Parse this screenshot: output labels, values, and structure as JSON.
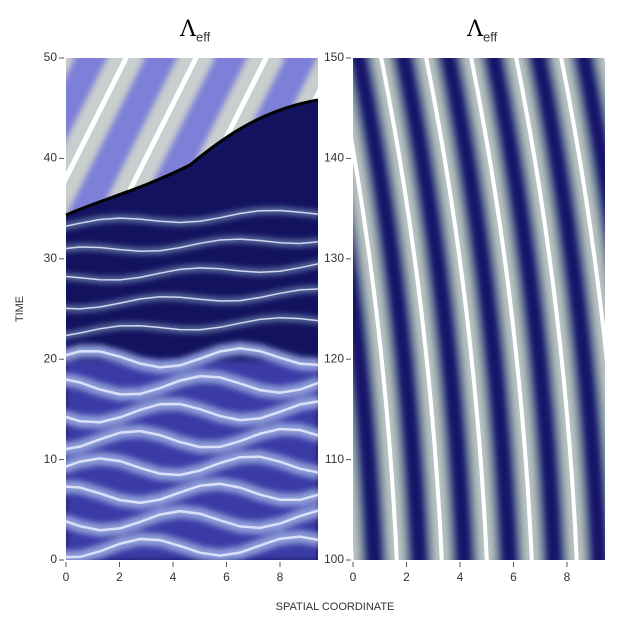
{
  "chart_data": [
    {
      "type": "heatmap",
      "title": "Λ",
      "title_subscript": "eff",
      "ylabel": "TIME",
      "xlabel": "SPATIAL COORDINATE",
      "xlim": [
        0,
        9.42
      ],
      "ylim": [
        0,
        50
      ],
      "xticks": [
        0,
        2,
        4,
        6,
        8
      ],
      "yticks": [
        0,
        10,
        20,
        30,
        40,
        50
      ]
    },
    {
      "type": "heatmap",
      "title": "Λ",
      "title_subscript": "eff",
      "xlim": [
        0,
        9.42
      ],
      "ylim": [
        100,
        150
      ],
      "xticks": [
        0,
        2,
        4,
        6,
        8
      ],
      "yticks": [
        100,
        110,
        120,
        130,
        140,
        150
      ]
    }
  ]
}
